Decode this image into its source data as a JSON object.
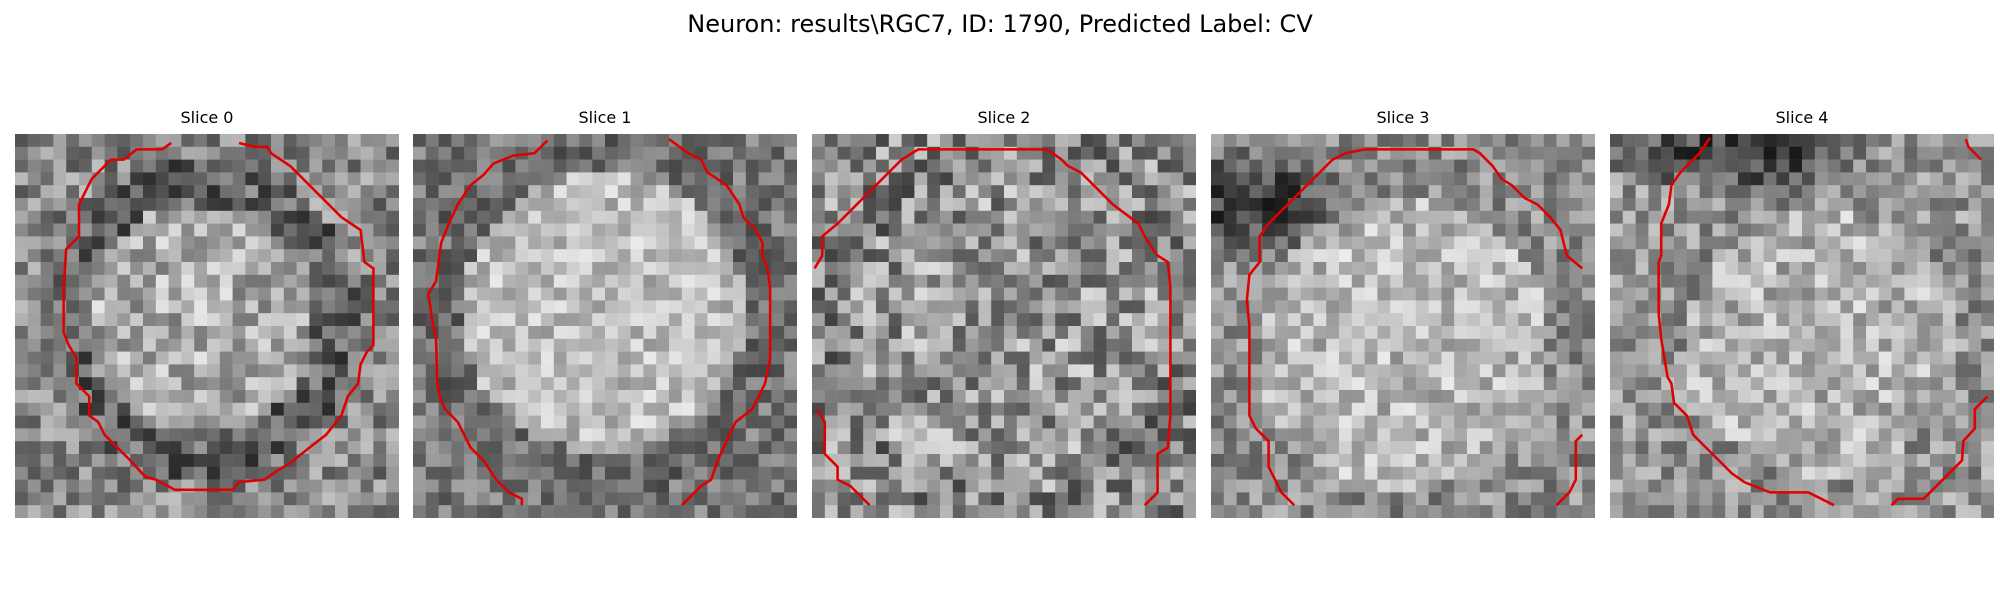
{
  "figure": {
    "title": "Neuron: results\\RGC7, ID: 1790, Predicted Label: CV",
    "contour_color": "#e00000"
  },
  "panels": [
    {
      "label": "Slice 0",
      "content": "noisy grayscale cell cross-section, bright circular body with darker ring"
    },
    {
      "label": "Slice 1",
      "content": "noisy grayscale cell cross-section, bright circular body"
    },
    {
      "label": "Slice 2",
      "content": "noisy grayscale texture, weak circular outline"
    },
    {
      "label": "Slice 3",
      "content": "bright cell body, dark region at top-left"
    },
    {
      "label": "Slice 4",
      "content": "bright cell body, dark region along top edge"
    }
  ]
}
